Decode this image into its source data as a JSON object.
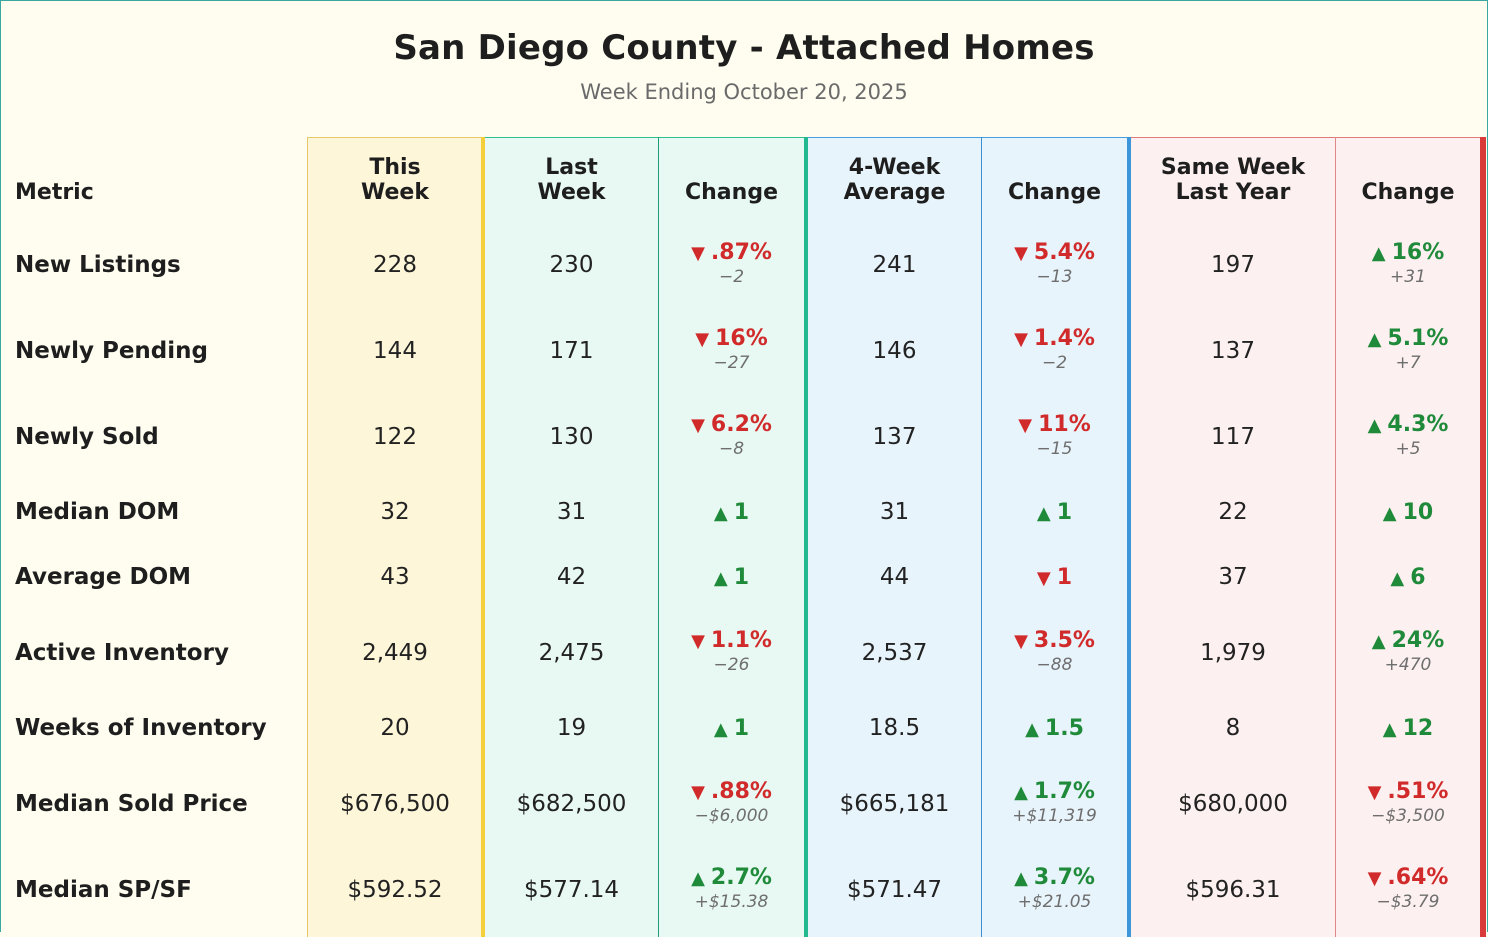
{
  "title": "San Diego County - Attached Homes",
  "subtitle": "Week Ending October 20, 2025",
  "headers": {
    "metric": "Metric",
    "this_week": [
      "This",
      "Week"
    ],
    "last_week": [
      "Last",
      "Week"
    ],
    "change": "Change",
    "four_week": [
      "4-Week",
      "Average"
    ],
    "same_week": [
      "Same Week",
      "Last Year"
    ]
  },
  "colors": {
    "up": "#1f8a3a",
    "down": "#d12a2a",
    "this_week_accent": "#f4cf3a",
    "last_week_accent": "#22b890",
    "four_week_accent": "#3d95da",
    "last_year_accent": "#d93a3a"
  },
  "rows": [
    {
      "metric": "New Listings",
      "this_week": "228",
      "last_week": "230",
      "chg_last": {
        "dir": "down",
        "pct": ".87%",
        "abs": "-2"
      },
      "four_week": "241",
      "chg_4w": {
        "dir": "down",
        "pct": "5.4%",
        "abs": "-13"
      },
      "last_year": "197",
      "chg_ly": {
        "dir": "up",
        "pct": "16%",
        "abs": "+31"
      }
    },
    {
      "metric": "Newly Pending",
      "this_week": "144",
      "last_week": "171",
      "chg_last": {
        "dir": "down",
        "pct": "16%",
        "abs": "-27"
      },
      "four_week": "146",
      "chg_4w": {
        "dir": "down",
        "pct": "1.4%",
        "abs": "-2"
      },
      "last_year": "137",
      "chg_ly": {
        "dir": "up",
        "pct": "5.1%",
        "abs": "+7"
      }
    },
    {
      "metric": "Newly Sold",
      "this_week": "122",
      "last_week": "130",
      "chg_last": {
        "dir": "down",
        "pct": "6.2%",
        "abs": "-8"
      },
      "four_week": "137",
      "chg_4w": {
        "dir": "down",
        "pct": "11%",
        "abs": "-15"
      },
      "last_year": "117",
      "chg_ly": {
        "dir": "up",
        "pct": "4.3%",
        "abs": "+5"
      }
    },
    {
      "metric": "Median DOM",
      "this_week": "32",
      "last_week": "31",
      "chg_last": {
        "dir": "up",
        "pct": "1",
        "abs": ""
      },
      "four_week": "31",
      "chg_4w": {
        "dir": "up",
        "pct": "1",
        "abs": ""
      },
      "last_year": "22",
      "chg_ly": {
        "dir": "up",
        "pct": "10",
        "abs": ""
      }
    },
    {
      "metric": "Average DOM",
      "this_week": "43",
      "last_week": "42",
      "chg_last": {
        "dir": "up",
        "pct": "1",
        "abs": ""
      },
      "four_week": "44",
      "chg_4w": {
        "dir": "down",
        "pct": "1",
        "abs": ""
      },
      "last_year": "37",
      "chg_ly": {
        "dir": "up",
        "pct": "6",
        "abs": ""
      }
    },
    {
      "metric": "Active Inventory",
      "this_week": "2,449",
      "last_week": "2,475",
      "chg_last": {
        "dir": "down",
        "pct": "1.1%",
        "abs": "-26"
      },
      "four_week": "2,537",
      "chg_4w": {
        "dir": "down",
        "pct": "3.5%",
        "abs": "-88"
      },
      "last_year": "1,979",
      "chg_ly": {
        "dir": "up",
        "pct": "24%",
        "abs": "+470"
      }
    },
    {
      "metric": "Weeks of Inventory",
      "this_week": "20",
      "last_week": "19",
      "chg_last": {
        "dir": "up",
        "pct": "1",
        "abs": ""
      },
      "four_week": "18.5",
      "chg_4w": {
        "dir": "up",
        "pct": "1.5",
        "abs": ""
      },
      "last_year": "8",
      "chg_ly": {
        "dir": "up",
        "pct": "12",
        "abs": ""
      }
    },
    {
      "metric": "Median Sold Price",
      "this_week": "$676,500",
      "last_week": "$682,500",
      "chg_last": {
        "dir": "down",
        "pct": ".88%",
        "abs": "-$6,000"
      },
      "four_week": "$665,181",
      "chg_4w": {
        "dir": "up",
        "pct": "1.7%",
        "abs": "+$11,319"
      },
      "last_year": "$680,000",
      "chg_ly": {
        "dir": "down",
        "pct": ".51%",
        "abs": "-$3,500"
      }
    },
    {
      "metric": "Median SP/SF",
      "this_week": "$592.52",
      "last_week": "$577.14",
      "chg_last": {
        "dir": "up",
        "pct": "2.7%",
        "abs": "+$15.38"
      },
      "four_week": "$571.47",
      "chg_4w": {
        "dir": "up",
        "pct": "3.7%",
        "abs": "+$21.05"
      },
      "last_year": "$596.31",
      "chg_ly": {
        "dir": "down",
        "pct": ".64%",
        "abs": "-$3.79"
      }
    }
  ]
}
